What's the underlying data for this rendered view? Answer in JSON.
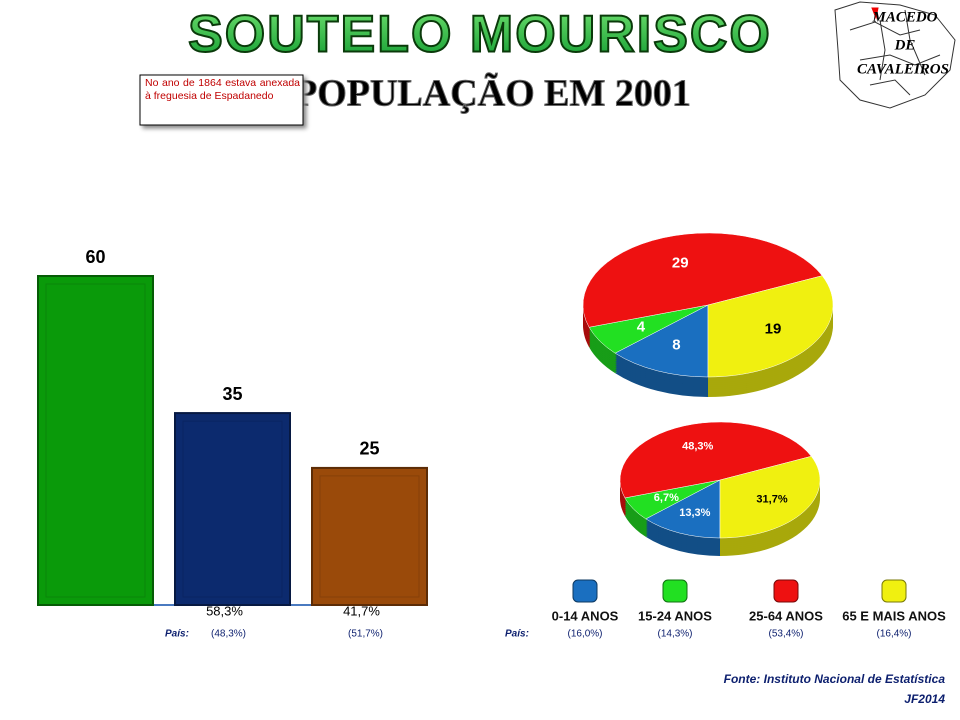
{
  "header": {
    "title": "SOUTELO MOURISCO",
    "subtitle": "A POPULAÇÃO EM 2001",
    "note": "No ano de 1864 estava anexada à freguesia de Espadanedo",
    "map_label": [
      "MACEDO",
      "DE",
      "CAVALEIROS"
    ]
  },
  "chart_data": [
    {
      "type": "bar",
      "categories": [
        null,
        null,
        null
      ],
      "values": [
        60,
        35,
        25
      ],
      "colors": [
        "#0a9a0a",
        "#0c2a6e",
        "#9a4a0a"
      ],
      "ylim": [
        0,
        60
      ],
      "sub_labels": [
        null,
        "58,3%",
        "41,7%"
      ],
      "country_label": "País:",
      "country_values": [
        null,
        "(48,3%)",
        "(51,7%)"
      ]
    },
    {
      "type": "pie",
      "categories": [
        "0-14 ANOS",
        "15-24 ANOS",
        "25-64 ANOS",
        "65 E MAIS ANOS"
      ],
      "values": [
        8,
        4,
        29,
        19
      ],
      "colors": [
        "#1a6fc0",
        "#22e022",
        "#ee1111",
        "#f0f010"
      ],
      "country_label": "País:",
      "country_values": [
        "(16,0%)",
        "(14,3%)",
        "(53,4%)",
        "(16,4%)"
      ]
    },
    {
      "type": "pie",
      "values": [
        13.3,
        6.7,
        48.3,
        31.7
      ],
      "value_labels": [
        "13,3%",
        "6,7%",
        "48,3%",
        "31,7%"
      ],
      "colors": [
        "#1a6fc0",
        "#22e022",
        "#ee1111",
        "#f0f010"
      ]
    }
  ],
  "footer": {
    "source": "Fonte: Instituto Nacional de Estatística",
    "author": "JF2014"
  }
}
